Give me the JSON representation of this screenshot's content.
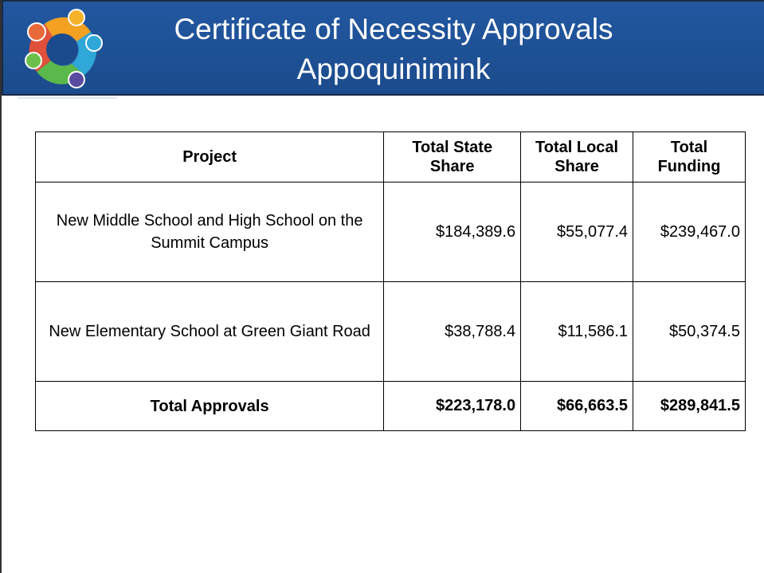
{
  "header": {
    "title": [
      "Certificate of Necessity Approvals",
      "Appoquinimink"
    ]
  },
  "table": {
    "columns": [
      "Project",
      "Total State Share",
      "Total Local Share",
      "Total Funding"
    ],
    "rows": [
      [
        "New Middle School and High School on the Summit Campus",
        "$184,389.6",
        "$55,077.4",
        "$239,467.0"
      ],
      [
        "New Elementary School at Green Giant Road",
        "$38,788.4",
        "$11,586.1",
        "$50,374.5"
      ]
    ],
    "total": [
      "Total Approvals",
      "$223,178.0",
      "$66,663.5",
      "$289,841.5"
    ]
  }
}
